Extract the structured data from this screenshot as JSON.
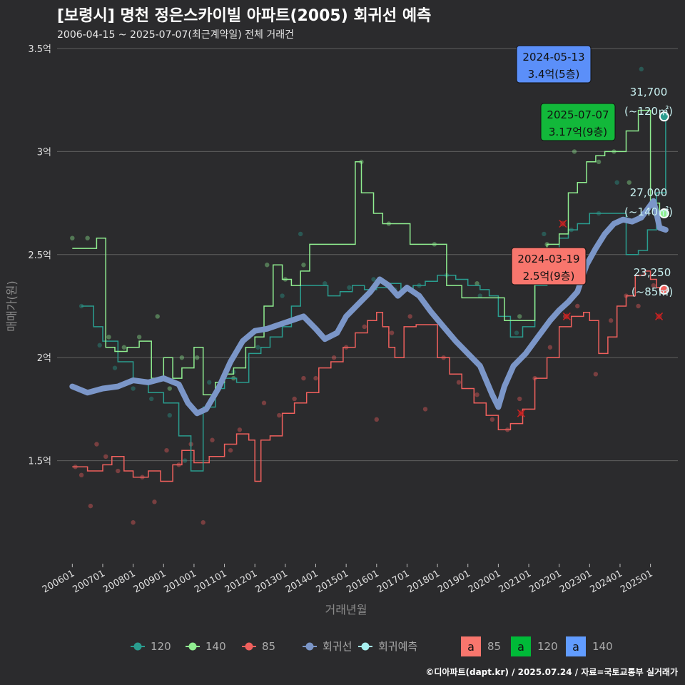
{
  "header": {
    "title": "[보령시] 명천 정은스카이빌 아파트(2005) 회귀선 예측",
    "subtitle": "2006-04-15 ~ 2025-07-07(최근계약일) 전체 거래건"
  },
  "credit": "©디아파트(dapt.kr) / 2025.07.24 / 자료=국토교통부 실거래가",
  "chart_data": {
    "type": "line",
    "title": "[보령시] 명천 정은스카이빌 아파트(2005) 회귀선 예측",
    "xlabel": "거래년월",
    "ylabel": "매매가(원)",
    "ylim": [
      1.0,
      3.5
    ],
    "xlim": [
      2005.5,
      2025.9
    ],
    "y_ticks": [
      {
        "value": 1.5,
        "label": "1.5억"
      },
      {
        "value": 2.0,
        "label": "2억"
      },
      {
        "value": 2.5,
        "label": "2.5억"
      },
      {
        "value": 3.0,
        "label": "3억"
      },
      {
        "value": 3.5,
        "label": "3.5억"
      }
    ],
    "x_ticks": [
      "200601",
      "200701",
      "200801",
      "200901",
      "201001",
      "201101",
      "201201",
      "201301",
      "201401",
      "201501",
      "201601",
      "201701",
      "201801",
      "201901",
      "202001",
      "202101",
      "202201",
      "202301",
      "202401",
      "202501"
    ],
    "colors": {
      "s85": "#f0605d",
      "s120": "#2a9d8f",
      "s140": "#90ee90",
      "regression": "#7b96c8",
      "forecast": "#a8f0f0",
      "label_text": "#c8f0f0"
    },
    "series": [
      {
        "name": "85",
        "color": "#f0605d",
        "x": [
          2006.0,
          2006.5,
          2007.0,
          2007.3,
          2007.7,
          2008.0,
          2008.5,
          2008.9,
          2009.3,
          2009.6,
          2010.0,
          2010.5,
          2011.0,
          2011.4,
          2011.8,
          2012.0,
          2012.2,
          2012.5,
          2012.9,
          2013.3,
          2013.7,
          2014.1,
          2014.5,
          2014.9,
          2015.3,
          2015.7,
          2016.0,
          2016.2,
          2016.4,
          2016.6,
          2016.9,
          2017.3,
          2017.5,
          2018.0,
          2018.4,
          2018.8,
          2019.2,
          2019.6,
          2020.0,
          2020.4,
          2020.8,
          2021.2,
          2021.6,
          2022.0,
          2022.4,
          2022.8,
          2023.0,
          2023.3,
          2023.6,
          2023.9,
          2024.2,
          2024.5,
          2024.8,
          2025.0,
          2025.2,
          2025.5
        ],
        "values": [
          1.47,
          1.45,
          1.48,
          1.52,
          1.45,
          1.42,
          1.45,
          1.4,
          1.48,
          1.55,
          1.49,
          1.52,
          1.58,
          1.63,
          1.6,
          1.4,
          1.6,
          1.62,
          1.73,
          1.78,
          1.83,
          1.95,
          1.98,
          2.05,
          2.12,
          2.18,
          2.22,
          2.15,
          2.05,
          2.0,
          2.15,
          2.16,
          2.16,
          2.0,
          1.92,
          1.85,
          1.78,
          1.72,
          1.65,
          1.68,
          1.75,
          1.9,
          2.0,
          2.15,
          2.2,
          2.22,
          2.18,
          2.02,
          2.1,
          2.25,
          2.3,
          2.4,
          2.42,
          2.38,
          2.34,
          2.33
        ]
      },
      {
        "name": "120",
        "color": "#2a9d8f",
        "x": [
          2006.3,
          2006.7,
          2007.0,
          2007.5,
          2008.0,
          2008.5,
          2009.0,
          2009.5,
          2009.9,
          2010.3,
          2010.7,
          2011.0,
          2011.4,
          2011.8,
          2012.2,
          2012.5,
          2012.9,
          2013.2,
          2013.5,
          2014.0,
          2014.4,
          2014.8,
          2015.2,
          2015.6,
          2016.0,
          2016.4,
          2016.8,
          2017.2,
          2017.6,
          2018.0,
          2018.3,
          2018.6,
          2019.0,
          2019.4,
          2019.7,
          2020.0,
          2020.4,
          2020.8,
          2021.2,
          2021.6,
          2022.0,
          2022.3,
          2022.6,
          2023.0,
          2023.4,
          2023.8,
          2024.2,
          2024.6,
          2024.9,
          2025.2,
          2025.5
        ],
        "values": [
          2.25,
          2.15,
          2.08,
          1.98,
          1.88,
          1.83,
          1.78,
          1.62,
          1.45,
          1.76,
          1.85,
          1.9,
          1.88,
          2.02,
          2.05,
          2.1,
          2.15,
          2.25,
          2.35,
          2.35,
          2.3,
          2.32,
          2.35,
          2.33,
          2.34,
          2.36,
          2.33,
          2.35,
          2.37,
          2.4,
          2.4,
          2.38,
          2.35,
          2.33,
          2.3,
          2.2,
          2.1,
          2.15,
          2.35,
          2.5,
          2.58,
          2.62,
          2.65,
          2.7,
          2.7,
          2.7,
          2.5,
          2.52,
          2.62,
          2.8,
          3.17
        ]
      },
      {
        "name": "140",
        "color": "#90ee90",
        "x": [
          2006.0,
          2006.4,
          2006.8,
          2007.1,
          2007.4,
          2007.8,
          2008.2,
          2008.6,
          2009.0,
          2009.3,
          2009.6,
          2010.0,
          2010.3,
          2010.7,
          2011.0,
          2011.3,
          2011.7,
          2012.0,
          2012.3,
          2012.6,
          2012.9,
          2013.2,
          2013.5,
          2013.8,
          2015.3,
          2015.5,
          2015.8,
          2015.9,
          2016.2,
          2016.5,
          2016.8,
          2017.1,
          2017.8,
          2018.3,
          2018.8,
          2019.2,
          2019.6,
          2020.2,
          2020.6,
          2021.2,
          2021.6,
          2022.0,
          2022.3,
          2022.6,
          2022.9,
          2023.2,
          2023.5,
          2023.8,
          2024.2,
          2024.6,
          2025.0,
          2025.3,
          2025.5
        ],
        "values": [
          2.53,
          2.53,
          2.58,
          2.05,
          2.03,
          2.05,
          2.08,
          1.9,
          2.0,
          1.9,
          1.95,
          2.05,
          1.82,
          1.88,
          1.92,
          1.95,
          2.05,
          2.1,
          2.25,
          2.45,
          2.38,
          2.35,
          2.42,
          2.55,
          2.95,
          2.8,
          2.8,
          2.7,
          2.65,
          2.65,
          2.65,
          2.55,
          2.55,
          2.35,
          2.29,
          2.29,
          2.29,
          2.18,
          2.18,
          2.45,
          2.55,
          2.6,
          2.8,
          2.85,
          2.95,
          2.98,
          3.0,
          3.0,
          3.1,
          3.2,
          2.75,
          2.7,
          2.7
        ]
      },
      {
        "name": "회귀선",
        "color": "#7b96c8",
        "x": [
          2006.0,
          2006.5,
          2007.0,
          2007.5,
          2008.0,
          2008.5,
          2009.0,
          2009.5,
          2009.8,
          2010.1,
          2010.4,
          2010.8,
          2011.2,
          2011.6,
          2012.0,
          2012.4,
          2012.8,
          2013.2,
          2013.6,
          2014.0,
          2014.3,
          2014.7,
          2015.0,
          2015.4,
          2015.8,
          2016.1,
          2016.4,
          2016.7,
          2017.0,
          2017.4,
          2017.8,
          2018.2,
          2018.6,
          2019.0,
          2019.4,
          2019.8,
          2020.0,
          2020.2,
          2020.5,
          2020.9,
          2021.3,
          2021.7,
          2022.0,
          2022.3,
          2022.6,
          2022.9,
          2023.2,
          2023.5,
          2023.8,
          2024.1,
          2024.4,
          2024.7,
          2024.9,
          2025.1,
          2025.2,
          2025.3,
          2025.5
        ],
        "values": [
          1.86,
          1.83,
          1.85,
          1.86,
          1.89,
          1.88,
          1.9,
          1.87,
          1.78,
          1.73,
          1.75,
          1.85,
          1.98,
          2.08,
          2.13,
          2.14,
          2.16,
          2.18,
          2.2,
          2.14,
          2.09,
          2.12,
          2.2,
          2.26,
          2.32,
          2.38,
          2.35,
          2.3,
          2.34,
          2.3,
          2.22,
          2.15,
          2.08,
          2.02,
          1.96,
          1.82,
          1.76,
          1.86,
          1.96,
          2.02,
          2.1,
          2.18,
          2.23,
          2.27,
          2.32,
          2.45,
          2.53,
          2.6,
          2.65,
          2.67,
          2.66,
          2.68,
          2.72,
          2.76,
          2.7,
          2.63,
          2.62
        ]
      }
    ],
    "scatter_85": {
      "x": [
        2006.1,
        2006.3,
        2006.6,
        2006.8,
        2007.1,
        2007.5,
        2008.0,
        2008.3,
        2008.7,
        2009.1,
        2009.5,
        2009.9,
        2010.3,
        2010.6,
        2011.2,
        2011.5,
        2012.3,
        2012.8,
        2013.3,
        2013.6,
        2014.0,
        2014.6,
        2015.0,
        2015.6,
        2016.0,
        2016.5,
        2017.1,
        2017.6,
        2018.2,
        2018.7,
        2019.3,
        2019.8,
        2020.3,
        2020.7,
        2021.2,
        2021.7,
        2022.2,
        2022.6,
        2023.2,
        2023.7,
        2024.2,
        2024.6,
        2025.1
      ],
      "y": [
        1.47,
        1.43,
        1.28,
        1.58,
        1.52,
        1.45,
        1.2,
        1.42,
        1.3,
        1.55,
        1.48,
        1.58,
        1.2,
        1.6,
        1.55,
        1.65,
        1.78,
        1.72,
        1.8,
        1.9,
        1.9,
        2.0,
        2.05,
        2.15,
        1.7,
        2.12,
        2.2,
        1.75,
        2.0,
        1.88,
        1.82,
        1.7,
        1.65,
        1.8,
        1.9,
        2.05,
        2.2,
        2.25,
        1.92,
        2.18,
        2.3,
        2.25,
        2.35
      ]
    },
    "scatter_120": {
      "x": [
        2006.3,
        2006.9,
        2007.4,
        2008.0,
        2008.6,
        2009.2,
        2009.7,
        2010.5,
        2011.3,
        2012.1,
        2012.9,
        2013.5,
        2014.3,
        2015.1,
        2015.9,
        2016.6,
        2017.4,
        2018.3,
        2019.4,
        2020.6,
        2021.5,
        2022.4,
        2023.3,
        2023.9,
        2024.7
      ],
      "y": [
        2.25,
        2.06,
        1.95,
        1.85,
        1.8,
        1.72,
        1.5,
        1.88,
        1.93,
        2.05,
        2.3,
        2.6,
        2.36,
        2.34,
        2.38,
        2.33,
        2.35,
        2.4,
        2.3,
        2.12,
        2.6,
        2.62,
        2.7,
        2.85,
        3.4
      ]
    },
    "scatter_140": {
      "x": [
        2006.0,
        2006.5,
        2007.2,
        2007.7,
        2008.2,
        2008.8,
        2009.2,
        2009.6,
        2010.1,
        2010.7,
        2011.3,
        2011.8,
        2012.4,
        2013.0,
        2013.6,
        2015.5,
        2016.4,
        2017.9,
        2019.3,
        2020.7,
        2021.6,
        2022.5,
        2023.3,
        2023.8,
        2024.3
      ],
      "y": [
        2.58,
        2.58,
        2.1,
        2.05,
        2.1,
        2.2,
        1.85,
        2.0,
        2.0,
        1.82,
        1.9,
        2.1,
        2.45,
        2.38,
        2.45,
        2.95,
        2.65,
        2.55,
        2.36,
        2.2,
        2.55,
        3.0,
        2.95,
        3.0,
        2.85
      ]
    },
    "latest_points": [
      {
        "series": "120",
        "x": 2025.45,
        "y": 3.17,
        "price_label": "31,700",
        "area_label": "(~120㎡)"
      },
      {
        "series": "140",
        "x": 2025.45,
        "y": 2.7,
        "price_label": "27,000",
        "area_label": "(~140㎡)"
      },
      {
        "series": "85",
        "x": 2025.45,
        "y": 2.33,
        "price_label": "23,250",
        "area_label": "(~85㎡)"
      }
    ],
    "cancelled_marks": [
      {
        "x": 2020.75,
        "y": 1.73
      },
      {
        "x": 2022.12,
        "y": 2.65
      },
      {
        "x": 2022.25,
        "y": 2.2
      },
      {
        "x": 2025.28,
        "y": 2.2
      }
    ],
    "annotations": [
      {
        "date": "2024-05-13",
        "text": "3.4억(5층)",
        "color": "#5b8ff9",
        "anchor_x": 2023.9,
        "anchor_y": 3.4
      },
      {
        "date": "2025-07-07",
        "text": "3.17억(9층)",
        "color": "#12b83a",
        "anchor_x": 2024.9,
        "anchor_y": 3.1
      },
      {
        "date": "2024-03-19",
        "text": "2.5억(9층)",
        "color": "#f8766d",
        "anchor_x": 2023.8,
        "anchor_y": 2.5
      }
    ],
    "legend": {
      "items": [
        {
          "label": "120",
          "color": "#2a9d8f"
        },
        {
          "label": "140",
          "color": "#90ee90"
        },
        {
          "label": "85",
          "color": "#f0605d"
        },
        {
          "label": "회귀선",
          "color": "#7b96c8"
        },
        {
          "label": "회귀예측",
          "color": "#a8f0f0"
        }
      ],
      "label_items": [
        {
          "glyph": "a",
          "label": "85",
          "color": "#f8766d"
        },
        {
          "glyph": "a",
          "label": "120",
          "color": "#00ba38"
        },
        {
          "glyph": "a",
          "label": "140",
          "color": "#619cff"
        }
      ],
      "position": "bottom"
    }
  }
}
